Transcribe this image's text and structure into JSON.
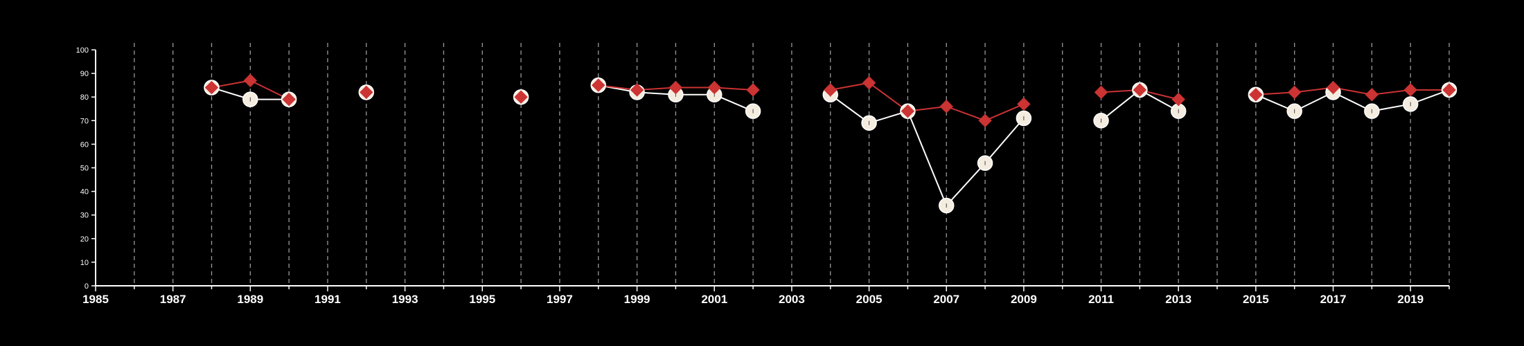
{
  "chart_data": {
    "type": "line",
    "title": "",
    "xlabel": "",
    "ylabel": "",
    "xlim": [
      1985,
      2020
    ],
    "ylim": [
      0,
      100
    ],
    "x_major_ticks": [
      1985,
      1987,
      1989,
      1991,
      1993,
      1995,
      1997,
      1999,
      2001,
      2003,
      2005,
      2007,
      2009,
      2011,
      2013,
      2015,
      2017,
      2019
    ],
    "x_minor_ticks": [
      1986,
      1988,
      1990,
      1992,
      1994,
      1996,
      1998,
      2000,
      2002,
      2004,
      2006,
      2008,
      2010,
      2012,
      2014,
      2016,
      2018,
      2020
    ],
    "y_ticks": [
      0,
      10,
      20,
      30,
      40,
      50,
      60,
      70,
      80,
      90,
      100
    ],
    "grid": "vertical dashed lines at each year",
    "legend": "none",
    "series": [
      {
        "marker": "diamond",
        "color": "#cc3333",
        "x": [
          1988,
          1989,
          1990,
          null,
          1992,
          null,
          1996,
          null,
          1998,
          1999,
          2000,
          2001,
          2002,
          null,
          2004,
          2005,
          2006,
          2007,
          2008,
          2009,
          null,
          2011,
          2012,
          2013,
          null,
          2015,
          2016,
          2017,
          2018,
          2019,
          2020
        ],
        "y": [
          84,
          87,
          79,
          null,
          82,
          null,
          80,
          null,
          85,
          83,
          84,
          84,
          83,
          null,
          83,
          86,
          74,
          76,
          70,
          77,
          null,
          82,
          83,
          79,
          null,
          81,
          82,
          84,
          81,
          83,
          83
        ]
      },
      {
        "marker": "circle",
        "color": "#f5ece0",
        "x": [
          1988,
          1989,
          1990,
          null,
          1992,
          null,
          1996,
          null,
          1998,
          1999,
          2000,
          2001,
          2002,
          null,
          2004,
          2005,
          2006,
          2007,
          2008,
          2009,
          null,
          2011,
          2012,
          2013,
          null,
          2015,
          2016,
          2017,
          2018,
          2019,
          2020
        ],
        "y": [
          84,
          79,
          79,
          null,
          82,
          null,
          80,
          null,
          85,
          82,
          81,
          81,
          74,
          null,
          81,
          69,
          74,
          34,
          52,
          71,
          null,
          70,
          83,
          74,
          null,
          81,
          74,
          82,
          74,
          77,
          83
        ]
      }
    ]
  },
  "colors": {
    "background": "#000000",
    "axis": "#ffffff",
    "grid": "#9a9a9a",
    "circle_fill": "#f5ece0",
    "circle_stroke": "#ffffff",
    "diamond_fill": "#cc3333",
    "diamond_line": "#cc3333",
    "circle_line": "#ffffff"
  }
}
